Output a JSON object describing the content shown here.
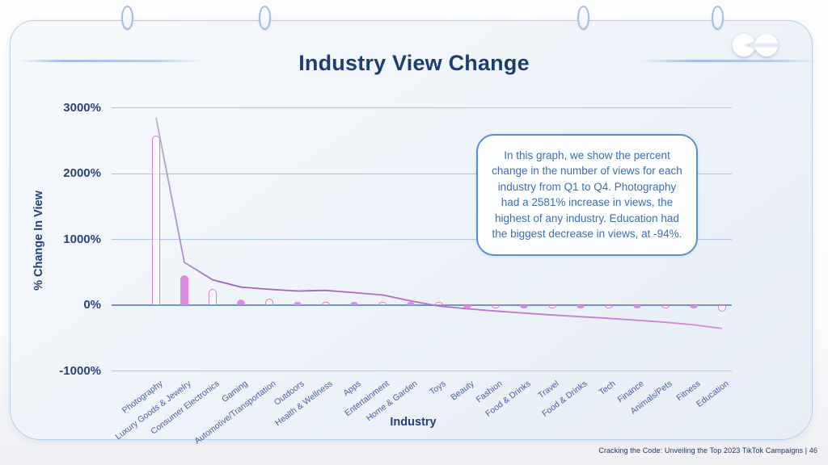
{
  "slide": {
    "title": "Industry View Change",
    "footer": "Cracking the Code: Unveiling the Top 2023 TikTok Campaigns |  46"
  },
  "callout": {
    "text": "In this graph, we show the percent change in the number of views for each industry from Q1 to Q4. Photography had a 2581% increase in views, the highest of any industry. Education had the biggest decrease in views, at -94%."
  },
  "chart_data": {
    "type": "bar",
    "title": "Industry View Change",
    "xlabel": "Industry",
    "ylabel": "% Change In View",
    "ylim": [
      -1000,
      3000
    ],
    "grid": true,
    "legend": false,
    "ytick_labels": [
      "3000%",
      "2000%",
      "1000%",
      "0%",
      "-1000%"
    ],
    "ytick_values": [
      3000,
      2000,
      1000,
      0,
      -1000
    ],
    "categories": [
      "Photography",
      "Luxury Goods & Jewelry",
      "Consumer Electronics",
      "Gaming",
      "Automotive/Transportation",
      "Outdoors",
      "Health & Wellness",
      "Apps",
      "Entertainment",
      "Home & Garden",
      "Toys",
      "Beauty",
      "Fashion",
      "Food & Drinks",
      "Travel",
      "Food & Drinks",
      "Tech",
      "Finance",
      "Animals/Pets",
      "Fitness",
      "Education"
    ],
    "series": [
      {
        "name": "percent change in views (bars)",
        "type": "bar",
        "values": [
          2581,
          460,
          240,
          90,
          100,
          45,
          55,
          28,
          15,
          10,
          6,
          -10,
          -15,
          -18,
          -22,
          -25,
          -28,
          -30,
          -32,
          -35,
          -94
        ]
      },
      {
        "name": "trend line",
        "type": "line",
        "values": [
          2850,
          650,
          385,
          275,
          240,
          215,
          225,
          190,
          155,
          65,
          -15,
          -55,
          -90,
          -120,
          -150,
          -175,
          -200,
          -230,
          -260,
          -300,
          -355
        ]
      }
    ],
    "bar_style_alternation": [
      "hollow",
      "filled"
    ],
    "highlights": {
      "highest": {
        "category": "Photography",
        "value": 2581
      },
      "lowest": {
        "category": "Education",
        "value": -94
      }
    },
    "colors": {
      "bar_fill": "#d98ce2",
      "bar_outline": "#d47fd8",
      "line_start": "#b5b1c7",
      "line_mid": "#a05cc6",
      "line_end": "#d98ce0",
      "gridline": "#aec5e4",
      "zero_line": "#6f96c8",
      "axis_text": "#24407c",
      "tick_text": "#4a5f9e",
      "title_text": "#1c3f6e",
      "callout_border": "#5b8ed0",
      "callout_text": "#3d6cb4"
    }
  }
}
